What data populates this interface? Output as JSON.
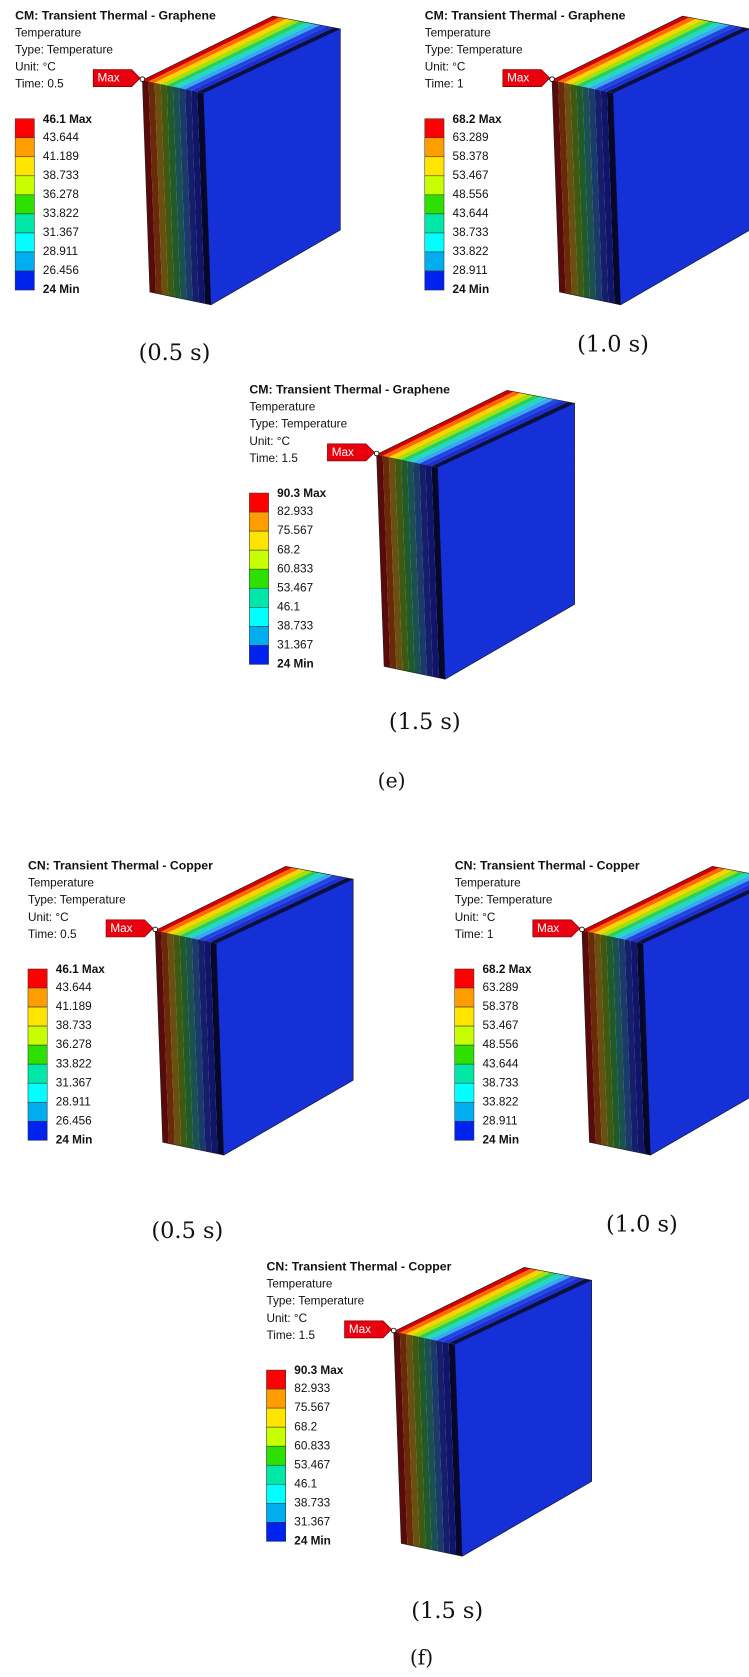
{
  "figures": [
    {
      "label": "(e)",
      "panels": [
        {
          "title": "CM: Transient Thermal - Graphene",
          "lines": [
            "Temperature",
            "Type: Temperature",
            "Unit: °C",
            "Time: 0.5"
          ],
          "max_tag": "Max",
          "legend": [
            "46.1 Max",
            "43.644",
            "41.189",
            "38.733",
            "36.278",
            "33.822",
            "31.367",
            "28.911",
            "26.456",
            "24 Min"
          ],
          "caption": "(0.5 s)"
        },
        {
          "title": "CM: Transient Thermal - Graphene",
          "lines": [
            "Temperature",
            "Type: Temperature",
            "Unit: °C",
            "Time: 1"
          ],
          "max_tag": "Max",
          "legend": [
            "68.2 Max",
            "63.289",
            "58.378",
            "53.467",
            "48.556",
            "43.644",
            "38.733",
            "33.822",
            "28.911",
            "24 Min"
          ],
          "caption": "(1.0 s)"
        },
        {
          "title": "CM: Transient Thermal - Graphene",
          "lines": [
            "Temperature",
            "Type: Temperature",
            "Unit: °C",
            "Time: 1.5"
          ],
          "max_tag": "Max",
          "legend": [
            "90.3 Max",
            "82.933",
            "75.567",
            "68.2",
            "60.833",
            "53.467",
            "46.1",
            "38.733",
            "31.367",
            "24 Min"
          ],
          "caption": "(1.5 s)"
        }
      ]
    },
    {
      "label": "(f)",
      "panels": [
        {
          "title": "CN: Transient Thermal - Copper",
          "lines": [
            "Temperature",
            "Type: Temperature",
            "Unit: °C",
            "Time: 0.5"
          ],
          "max_tag": "Max",
          "legend": [
            "46.1 Max",
            "43.644",
            "41.189",
            "38.733",
            "36.278",
            "33.822",
            "31.367",
            "28.911",
            "26.456",
            "24 Min"
          ],
          "caption": "(0.5 s)"
        },
        {
          "title": "CN: Transient Thermal - Copper",
          "lines": [
            "Temperature",
            "Type: Temperature",
            "Unit: °C",
            "Time: 1"
          ],
          "max_tag": "Max",
          "legend": [
            "68.2 Max",
            "63.289",
            "58.378",
            "53.467",
            "48.556",
            "43.644",
            "38.733",
            "33.822",
            "28.911",
            "24 Min"
          ],
          "caption": "(1.0 s)"
        },
        {
          "title": "CN: Transient Thermal - Copper",
          "lines": [
            "Temperature",
            "Type: Temperature",
            "Unit: °C",
            "Time: 1.5"
          ],
          "max_tag": "Max",
          "legend": [
            "90.3 Max",
            "82.933",
            "75.567",
            "68.2",
            "60.833",
            "53.467",
            "46.1",
            "38.733",
            "31.367",
            "24 Min"
          ],
          "caption": "(1.5 s)"
        }
      ]
    }
  ]
}
